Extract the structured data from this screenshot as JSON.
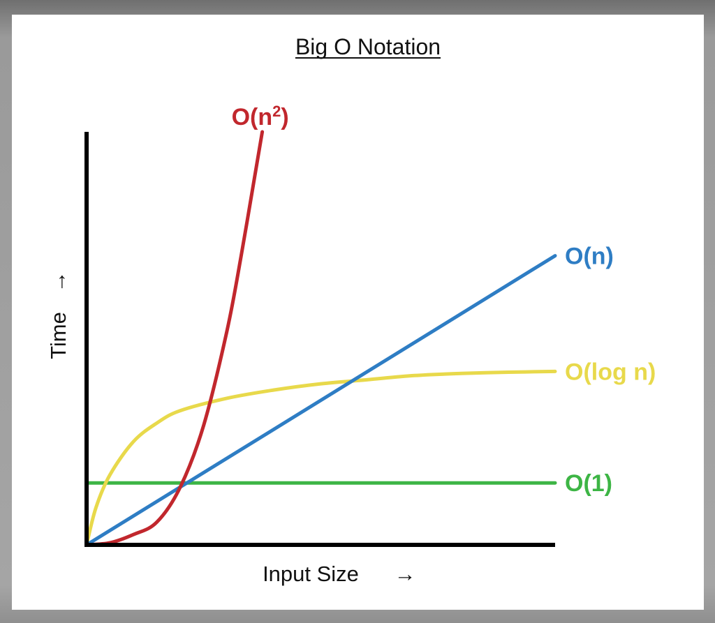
{
  "chart_data": {
    "type": "line",
    "title": "Big O Notation",
    "xlabel": "Input Size",
    "ylabel": "Time",
    "axis_arrow": "→",
    "grid": false,
    "legend": "inline-right",
    "xlim": [
      0,
      10
    ],
    "ylim": [
      0,
      10
    ],
    "series": [
      {
        "name": "O(n²)",
        "label_base": "O(n",
        "label_sup": "2",
        "label_close": ")",
        "color": "#c1272d",
        "x": [
          0,
          0.5,
          1,
          1.5,
          2,
          2.5,
          3,
          3.3,
          3.6,
          3.75
        ],
        "y": [
          0,
          0.05,
          0.25,
          0.55,
          1.4,
          2.9,
          5.2,
          7.0,
          9.0,
          10
        ]
      },
      {
        "name": "O(n)",
        "color": "#2e7dc4",
        "x": [
          0,
          10
        ],
        "y": [
          0,
          7.0
        ]
      },
      {
        "name": "O(log n)",
        "color": "#e8d94b",
        "x": [
          0,
          0.2,
          0.5,
          1,
          1.5,
          2,
          3,
          4,
          5,
          6,
          7,
          8,
          9,
          10
        ],
        "y": [
          0,
          0.9,
          1.7,
          2.5,
          2.95,
          3.25,
          3.55,
          3.75,
          3.9,
          4.0,
          4.1,
          4.15,
          4.18,
          4.2
        ]
      },
      {
        "name": "O(1)",
        "color": "#3db545",
        "x": [
          0,
          10
        ],
        "y": [
          1.5,
          1.5
        ]
      }
    ]
  }
}
